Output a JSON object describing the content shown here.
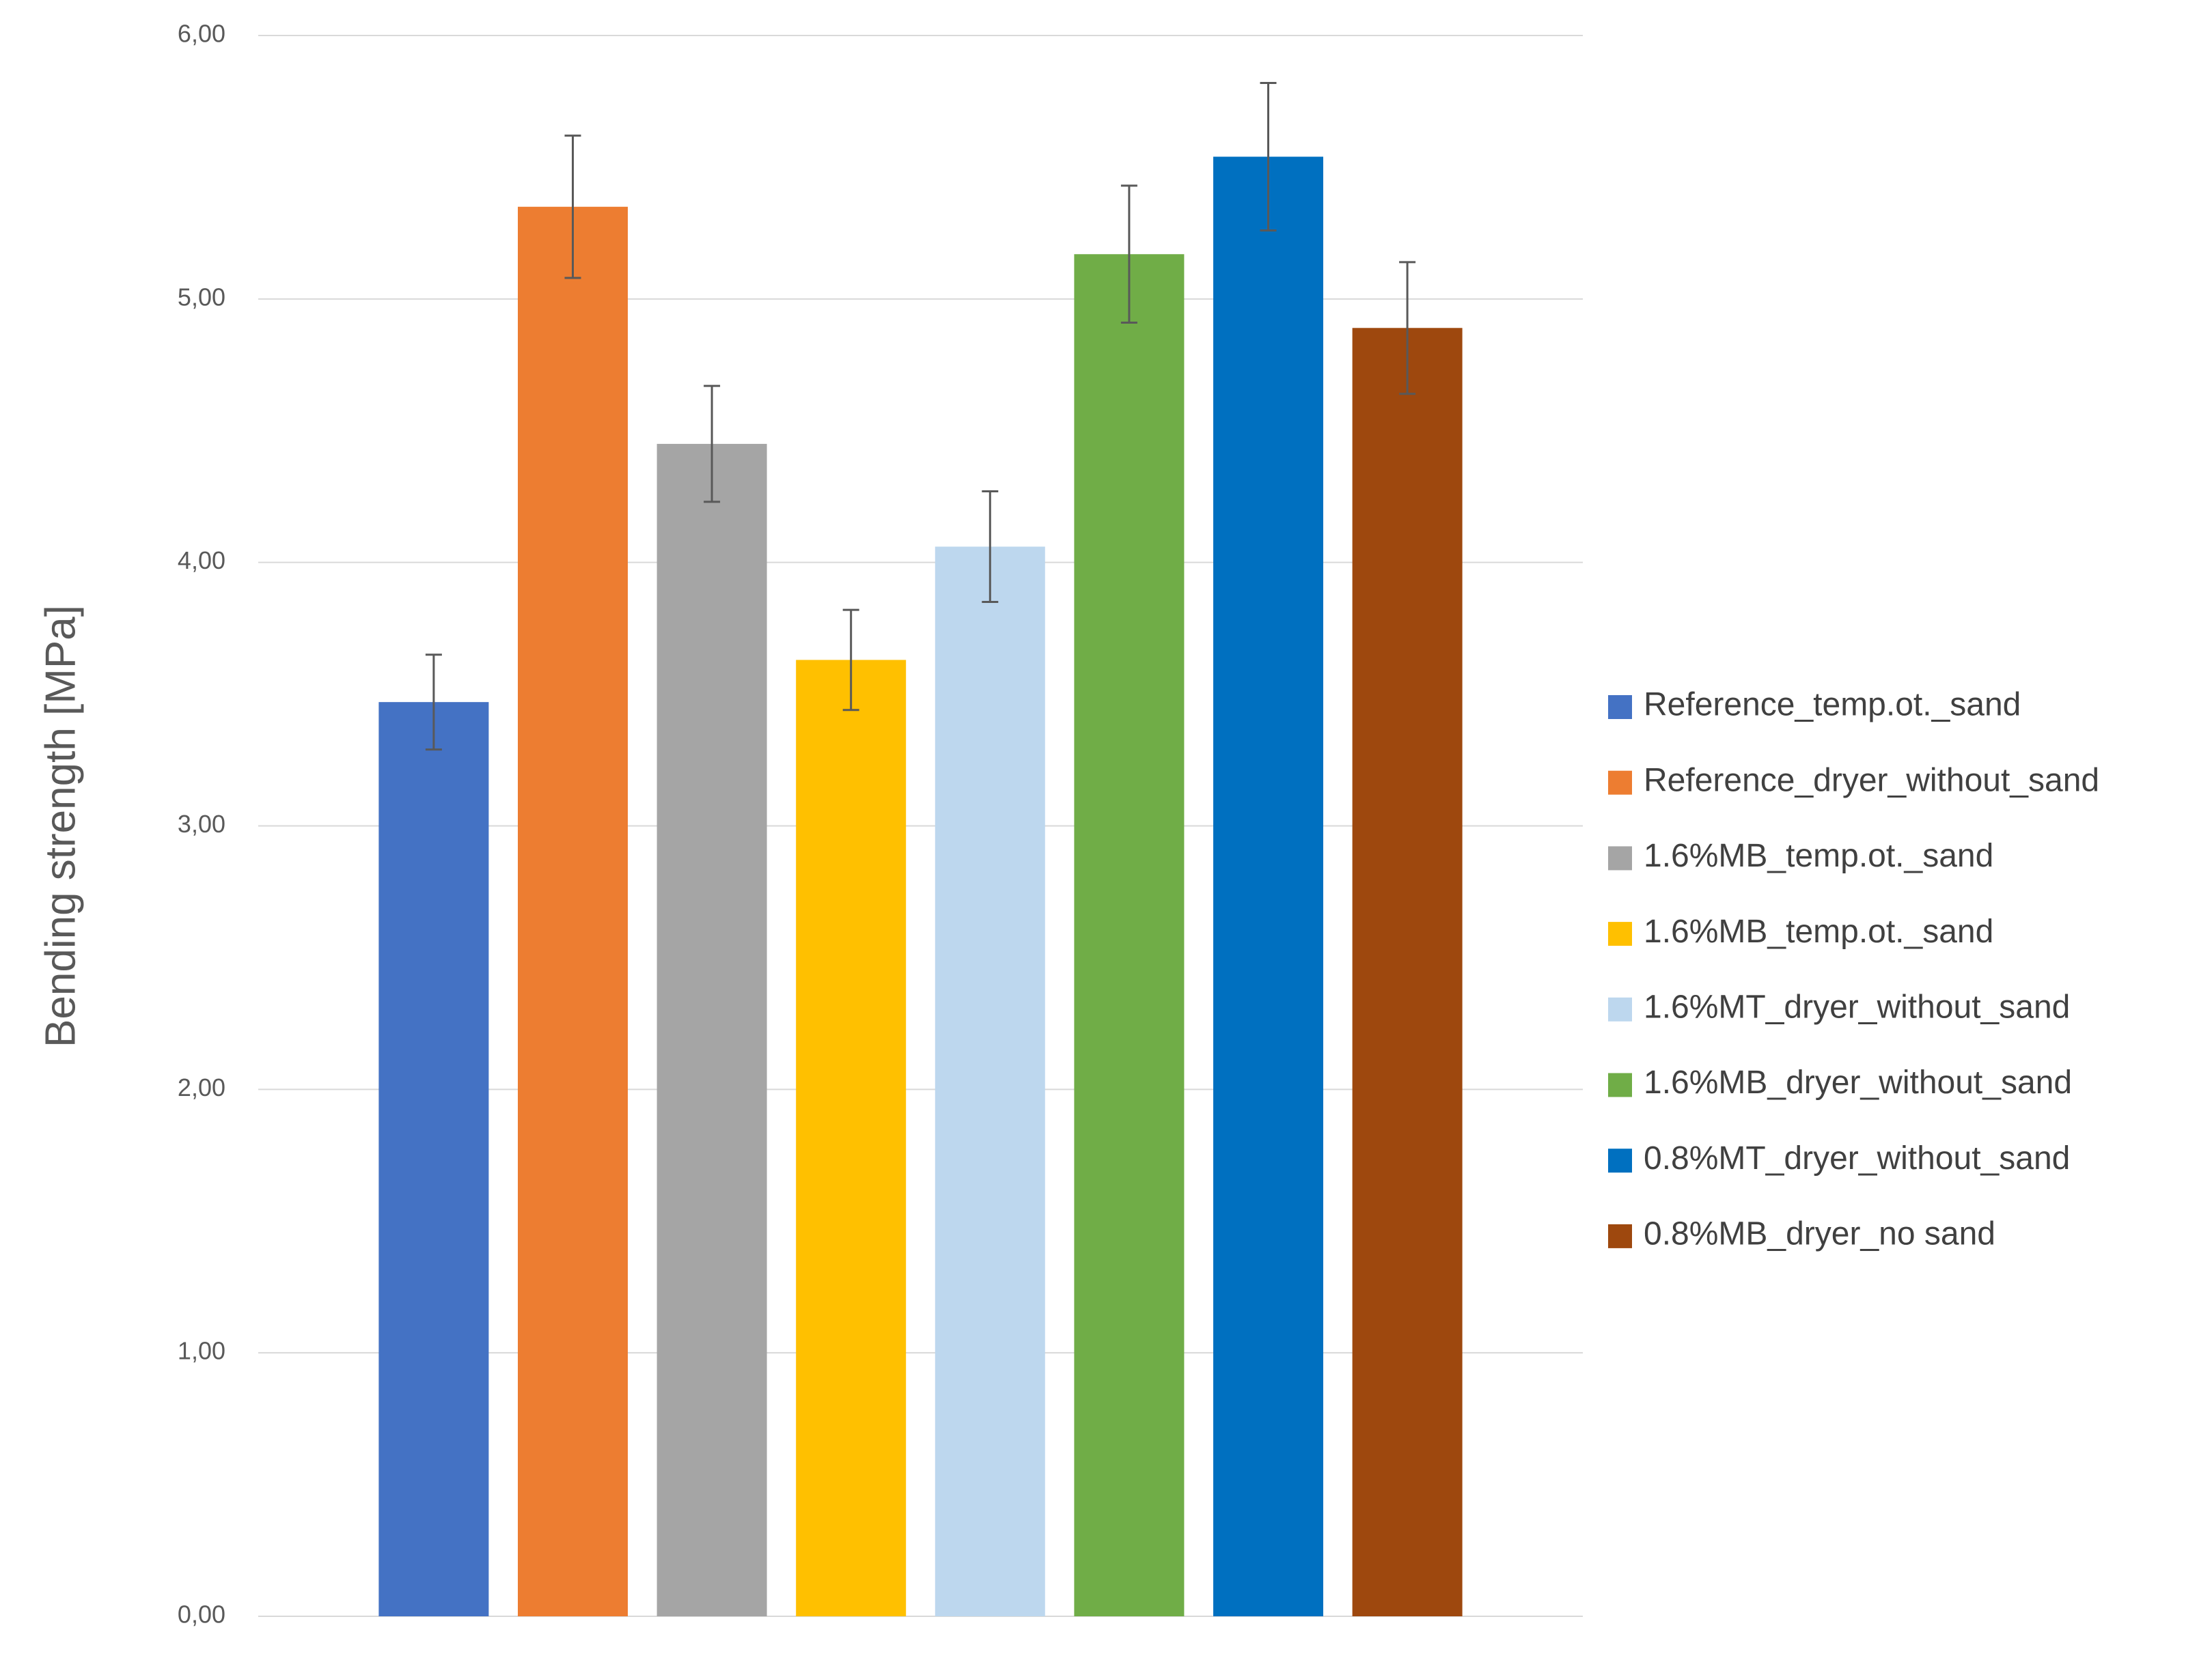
{
  "chart_data": {
    "type": "bar",
    "y_label": "Bending strength [MPa]",
    "ylim": [
      0,
      6
    ],
    "yticks": [
      {
        "value": 0,
        "label": "0,00"
      },
      {
        "value": 1,
        "label": "1,00"
      },
      {
        "value": 2,
        "label": "2,00"
      },
      {
        "value": 3,
        "label": "3,00"
      },
      {
        "value": 4,
        "label": "4,00"
      },
      {
        "value": 5,
        "label": "5,00"
      },
      {
        "value": 6,
        "label": "6,00"
      }
    ],
    "grid": true,
    "legend": "right",
    "series": [
      {
        "name": "Reference_temp.ot._sand",
        "color": "#4472c4",
        "values": [
          3.47
        ],
        "errors": [
          0.18
        ]
      },
      {
        "name": "Reference_dryer_without_sand",
        "color": "#ed7d31",
        "values": [
          5.35
        ],
        "errors": [
          0.27
        ]
      },
      {
        "name": "1.6%MB_temp.ot._sand",
        "color": "#a5a5a5",
        "values": [
          4.45
        ],
        "errors": [
          0.22
        ]
      },
      {
        "name": "1.6%MB_temp.ot._sand",
        "color": "#ffc000",
        "values": [
          3.63
        ],
        "errors": [
          0.19
        ]
      },
      {
        "name": "1.6%MT_dryer_without_sand",
        "color": "#bdd7ee",
        "values": [
          4.06
        ],
        "errors": [
          0.21
        ]
      },
      {
        "name": "1.6%MB_dryer_without_sand",
        "color": "#70ad47",
        "values": [
          5.17
        ],
        "errors": [
          0.26
        ]
      },
      {
        "name": "0.8%MT_dryer_without_sand",
        "color": "#0070c0",
        "values": [
          5.54
        ],
        "errors": [
          0.28
        ]
      },
      {
        "name": "0.8%MB_dryer_no sand",
        "color": "#9e480e",
        "values": [
          4.89
        ],
        "errors": [
          0.25
        ]
      }
    ]
  }
}
